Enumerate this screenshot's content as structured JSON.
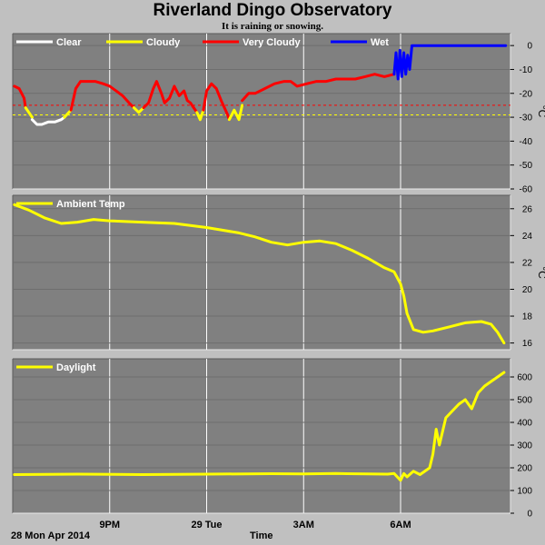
{
  "header": {
    "title": "Riverland Dingo Observatory",
    "subtitle": "It is raining or snowing."
  },
  "footer": {
    "date_label": "28 Mon Apr 2014",
    "time_label": "Time"
  },
  "x_axis": {
    "ticks": [
      {
        "label": "9PM",
        "x": 21
      },
      {
        "label": "29 Tue",
        "x": 24
      },
      {
        "label": "3AM",
        "x": 27
      },
      {
        "label": "6AM",
        "x": 30
      }
    ],
    "range": [
      18.0,
      33.4
    ]
  },
  "chart_data": [
    {
      "type": "line",
      "title": "",
      "ylabel": "°C",
      "ylim": [
        -60,
        5
      ],
      "yticks": [
        0,
        -10,
        -20,
        -30,
        -40,
        -50,
        -60
      ],
      "legend": [
        "Clear",
        "Cloudy",
        "Very Cloudy",
        "Wet"
      ],
      "legend_colors": [
        "#ffffff",
        "#ffff00",
        "#ff0000",
        "#0000ff"
      ],
      "thresholds": [
        {
          "value": -25,
          "color": "#ff0000"
        },
        {
          "value": -29,
          "color": "#ffff00"
        }
      ],
      "series": [
        {
          "name": "Very Cloudy",
          "color": "#ff0000",
          "x": [
            18.05,
            18.2,
            18.35,
            18.4
          ],
          "y": [
            -17,
            -18,
            -22,
            -26
          ]
        },
        {
          "name": "Cloudy",
          "color": "#ffff00",
          "x": [
            18.4,
            18.5,
            18.6
          ],
          "y": [
            -26,
            -28,
            -30
          ]
        },
        {
          "name": "Clear",
          "color": "#ffffff",
          "x": [
            18.6,
            18.75,
            18.9,
            19.1,
            19.3,
            19.5,
            19.6
          ],
          "y": [
            -31,
            -33,
            -33,
            -32,
            -32,
            -31,
            -30
          ]
        },
        {
          "name": "Cloudy",
          "color": "#ffff00",
          "x": [
            19.6,
            19.8
          ],
          "y": [
            -30,
            -27
          ]
        },
        {
          "name": "Very Cloudy",
          "color": "#ff0000",
          "x": [
            19.8,
            19.95,
            20.1,
            20.3,
            20.55,
            20.8,
            21.0,
            21.2,
            21.4,
            21.6,
            21.75
          ],
          "y": [
            -27,
            -18,
            -15,
            -15,
            -15,
            -16,
            -17,
            -19,
            -21,
            -24,
            -26
          ]
        },
        {
          "name": "Cloudy",
          "color": "#ffff00",
          "x": [
            21.75,
            21.9,
            22.05
          ],
          "y": [
            -26,
            -28,
            -26
          ]
        },
        {
          "name": "Very Cloudy",
          "color": "#ff0000",
          "x": [
            22.05,
            22.2,
            22.35,
            22.45,
            22.6,
            22.7,
            22.85,
            23.0,
            23.15,
            23.3,
            23.4,
            23.5,
            23.6,
            23.7
          ],
          "y": [
            -26,
            -24,
            -18,
            -15,
            -20,
            -24,
            -22,
            -17,
            -21,
            -19,
            -23,
            -24,
            -26,
            -28
          ]
        },
        {
          "name": "Cloudy",
          "color": "#ffff00",
          "x": [
            23.7,
            23.8,
            23.9
          ],
          "y": [
            -28,
            -31,
            -27
          ]
        },
        {
          "name": "Very Cloudy",
          "color": "#ff0000",
          "x": [
            23.9,
            24.0,
            24.15,
            24.3,
            24.45,
            24.55,
            24.65,
            24.7
          ],
          "y": [
            -27,
            -19,
            -16,
            -18,
            -23,
            -26,
            -29,
            -31
          ]
        },
        {
          "name": "Cloudy",
          "color": "#ffff00",
          "x": [
            24.7,
            24.85,
            25.0,
            25.1
          ],
          "y": [
            -31,
            -27,
            -31,
            -25
          ]
        },
        {
          "name": "Very Cloudy",
          "color": "#ff0000",
          "x": [
            25.1,
            25.3,
            25.5,
            25.8,
            26.1,
            26.4,
            26.6,
            26.8,
            27.1,
            27.4,
            27.7,
            28.0,
            28.3,
            28.6,
            28.9,
            29.2,
            29.5,
            29.8
          ],
          "y": [
            -23,
            -20,
            -20,
            -18,
            -16,
            -15,
            -15,
            -17,
            -16,
            -15,
            -15,
            -14,
            -14,
            -14,
            -13,
            -12,
            -13,
            -12
          ]
        },
        {
          "name": "Wet",
          "color": "#0000ff",
          "x": [
            29.8,
            29.86,
            29.92,
            29.98,
            30.04,
            30.1,
            30.16,
            30.22,
            30.28,
            30.35,
            30.5,
            31.0,
            32.0,
            33.0,
            33.25
          ],
          "y": [
            -12,
            -3,
            -14,
            -2,
            -13,
            -3,
            -12,
            -4,
            -10,
            0,
            0,
            0,
            0,
            0,
            0
          ]
        }
      ]
    },
    {
      "type": "line",
      "title": "",
      "ylabel": "°C",
      "ylim": [
        15.5,
        27.0
      ],
      "yticks": [
        16,
        18,
        20,
        22,
        24,
        26
      ],
      "legend": [
        "Ambient Temp"
      ],
      "legend_colors": [
        "#ffff00"
      ],
      "series": [
        {
          "name": "Ambient Temp",
          "color": "#ffff00",
          "x": [
            18.05,
            18.5,
            19.0,
            19.5,
            20.0,
            20.5,
            21.0,
            22.0,
            23.0,
            24.0,
            25.0,
            25.5,
            26.0,
            26.5,
            27.0,
            27.5,
            28.0,
            28.5,
            29.0,
            29.5,
            29.8,
            30.0,
            30.1,
            30.2,
            30.4,
            30.7,
            31.0,
            31.5,
            32.0,
            32.5,
            32.8,
            33.0,
            33.2
          ],
          "y": [
            26.3,
            25.9,
            25.3,
            24.9,
            25.0,
            25.2,
            25.1,
            25.0,
            24.9,
            24.6,
            24.2,
            23.9,
            23.5,
            23.3,
            23.5,
            23.6,
            23.4,
            22.9,
            22.3,
            21.6,
            21.3,
            20.4,
            19.5,
            18.2,
            17.0,
            16.8,
            16.9,
            17.2,
            17.5,
            17.6,
            17.4,
            16.8,
            16.0
          ]
        }
      ]
    },
    {
      "type": "line",
      "title": "",
      "ylabel": "",
      "ylim": [
        0,
        680
      ],
      "yticks": [
        0,
        100,
        200,
        300,
        400,
        500,
        600
      ],
      "legend": [
        "Daylight"
      ],
      "legend_colors": [
        "#ffff00"
      ],
      "series": [
        {
          "name": "Daylight",
          "color": "#ffff00",
          "x": [
            18.05,
            20.0,
            22.0,
            24.0,
            26.0,
            27.0,
            28.0,
            29.0,
            29.6,
            29.8,
            30.0,
            30.1,
            30.2,
            30.4,
            30.6,
            30.8,
            30.9,
            31.0,
            31.1,
            31.2,
            31.4,
            31.6,
            31.8,
            32.0,
            32.2,
            32.4,
            32.6,
            32.8,
            33.0,
            33.2
          ],
          "y": [
            170,
            172,
            170,
            172,
            174,
            173,
            175,
            173,
            172,
            175,
            145,
            175,
            160,
            185,
            170,
            190,
            200,
            260,
            370,
            300,
            420,
            450,
            480,
            500,
            460,
            530,
            560,
            580,
            600,
            620
          ]
        }
      ]
    }
  ]
}
